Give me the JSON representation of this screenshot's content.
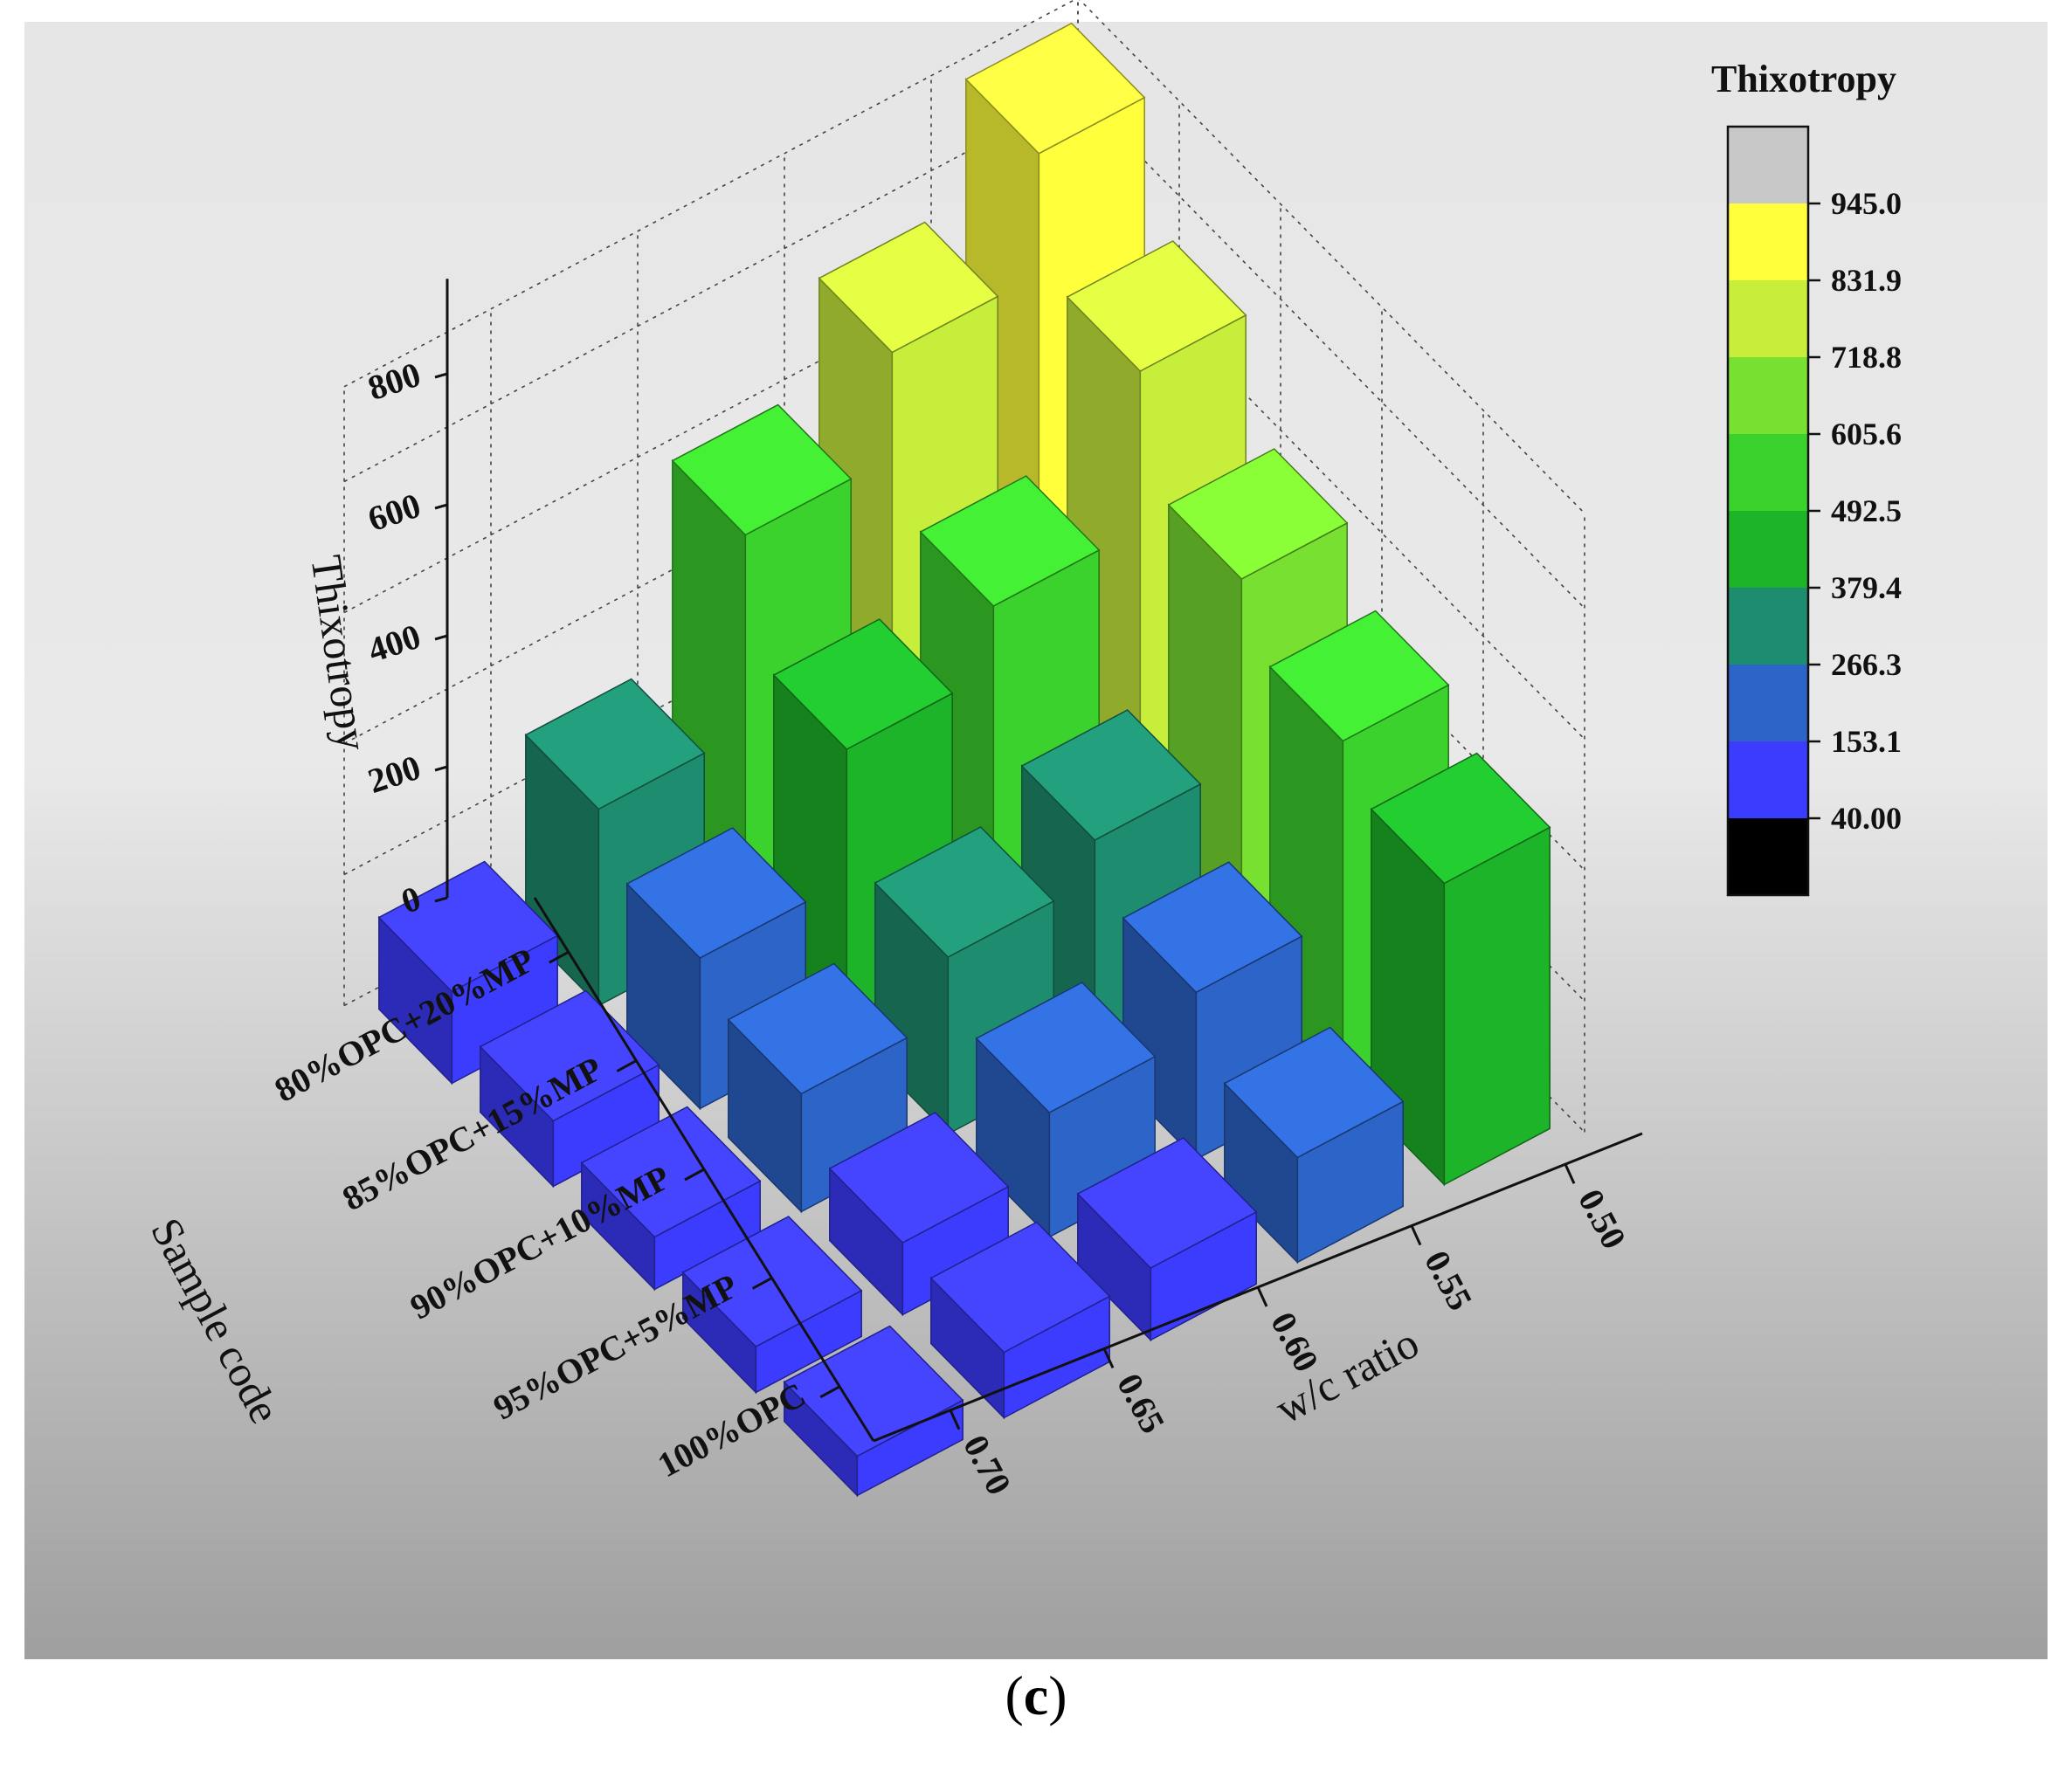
{
  "chart_data": {
    "type": "bar3d",
    "z_title": "Thixotropy",
    "y_title": "Sample code",
    "x_title": "w/c ratio",
    "z_ticks": [
      "0",
      "200",
      "400",
      "600",
      "800"
    ],
    "zlim": [
      0,
      945
    ],
    "wc_ratios": [
      "0.50",
      "0.55",
      "0.60",
      "0.65",
      "0.70"
    ],
    "samples": [
      "80%OPC+20%MP",
      "85%OPC+15%MP",
      "90%OPC+10%MP",
      "95%OPC+5%MP",
      "100%OPC"
    ],
    "values": [
      [
        945,
        760,
        600,
        300,
        140
      ],
      [
        770,
        530,
        430,
        230,
        100
      ],
      [
        610,
        330,
        270,
        180,
        80
      ],
      [
        520,
        255,
        190,
        110,
        70
      ],
      [
        460,
        160,
        110,
        100,
        60
      ]
    ],
    "legend": {
      "title": "Thixotropy",
      "ticks": [
        "945.0",
        "831.9",
        "718.8",
        "605.6",
        "492.5",
        "379.4",
        "266.3",
        "153.1",
        "40.00"
      ],
      "colors": [
        "#c8c8c8",
        "#ffff3c",
        "#c8ee3c",
        "#78e030",
        "#3cd22d",
        "#1eb42a",
        "#1e8c6e",
        "#2d64c8",
        "#3c3cff",
        "#000000"
      ]
    }
  },
  "caption": {
    "open": "(",
    "letter": "c",
    "close": ")"
  }
}
